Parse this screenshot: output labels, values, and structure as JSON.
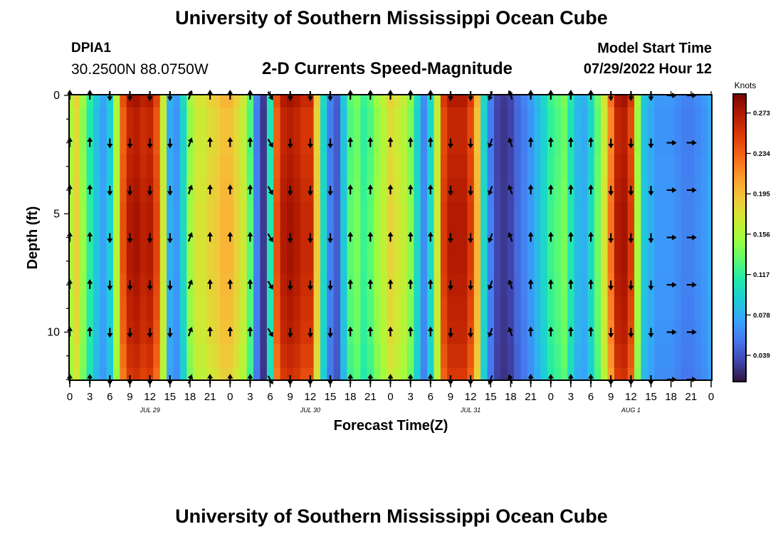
{
  "header": {
    "title": "University of Southern Mississippi Ocean Cube",
    "station": "DPIA1",
    "coords": "30.2500N  88.0750W",
    "plot_title": "2-D Currents Speed-Magnitude",
    "model_start_label": "Model Start Time",
    "model_start_time": "07/29/2022 Hour 12"
  },
  "footer": {
    "title": "University of Southern Mississippi Ocean Cube"
  },
  "colors": {
    "frame": "#000000",
    "arrow": "#000000",
    "colormap": [
      "#30123b",
      "#4145ab",
      "#4675ed",
      "#39a2fc",
      "#1bcfd4",
      "#24eca6",
      "#61fc6c",
      "#a4fc3b",
      "#d1e834",
      "#f3c63a",
      "#fe9b2d",
      "#f36315",
      "#d93806",
      "#b11901",
      "#7a0402"
    ]
  },
  "chart_data": {
    "type": "heatmap",
    "title": "2-D Currents Speed-Magnitude",
    "xlabel": "Forecast Time(Z)",
    "ylabel": "Depth (ft)",
    "x_tick_labels": [
      "0",
      "3",
      "6",
      "9",
      "12",
      "15",
      "18",
      "21",
      "0",
      "3",
      "6",
      "9",
      "12",
      "15",
      "18",
      "21",
      "0",
      "3",
      "6",
      "9",
      "12",
      "15",
      "18",
      "21",
      "0",
      "3",
      "6",
      "9",
      "12",
      "15",
      "18",
      "21",
      "0"
    ],
    "x_range_hours": [
      0,
      96
    ],
    "date_labels": [
      {
        "label": "JUL 29",
        "hour": 12
      },
      {
        "label": "JUL 30",
        "hour": 36
      },
      {
        "label": "JUL 31",
        "hour": 60
      },
      {
        "label": "AUG 1",
        "hour": 84
      }
    ],
    "y_tick_labels": [
      "0",
      "5",
      "10"
    ],
    "y_tick_values": [
      0,
      5,
      10
    ],
    "y_range_ft": [
      0,
      12
    ],
    "colorbar": {
      "label": "Knots",
      "tick_labels": [
        "0.273",
        "0.234",
        "0.195",
        "0.156",
        "0.117",
        "0.078",
        "0.039"
      ],
      "tick_values": [
        0.273,
        0.234,
        0.195,
        0.156,
        0.117,
        0.078,
        0.039
      ],
      "range": [
        0.015,
        0.29
      ]
    },
    "speed_time_hours": [
      0,
      1,
      2,
      3,
      4,
      5,
      6,
      7,
      8,
      9,
      10,
      11,
      12,
      13,
      14,
      15,
      16,
      17,
      18,
      19,
      20,
      21,
      22,
      23,
      24,
      25,
      26,
      27,
      28,
      29,
      30,
      31,
      32,
      33,
      34,
      35,
      36,
      37,
      38,
      39,
      40,
      41,
      42,
      43,
      44,
      45,
      46,
      47,
      48,
      49,
      50,
      51,
      52,
      53,
      54,
      55,
      56,
      57,
      58,
      59,
      60,
      61,
      62,
      63,
      64,
      65,
      66,
      67,
      68,
      69,
      70,
      71,
      72,
      73,
      74,
      75,
      76,
      77,
      78,
      79,
      80,
      81,
      82,
      83,
      84,
      85,
      86,
      87,
      88,
      89,
      90,
      91,
      92,
      93,
      94,
      95,
      96
    ],
    "speed_knots": [
      0.16,
      0.185,
      0.15,
      0.115,
      0.09,
      0.075,
      0.095,
      0.16,
      0.24,
      0.27,
      0.275,
      0.265,
      0.27,
      0.245,
      0.17,
      0.08,
      0.07,
      0.1,
      0.15,
      0.175,
      0.175,
      0.185,
      0.19,
      0.2,
      0.2,
      0.185,
      0.17,
      0.13,
      0.06,
      0.03,
      0.11,
      0.24,
      0.27,
      0.275,
      0.27,
      0.26,
      0.26,
      0.19,
      0.1,
      0.06,
      0.045,
      0.09,
      0.13,
      0.14,
      0.12,
      0.13,
      0.15,
      0.165,
      0.185,
      0.175,
      0.165,
      0.145,
      0.1,
      0.065,
      0.1,
      0.17,
      0.25,
      0.27,
      0.27,
      0.27,
      0.25,
      0.2,
      0.1,
      0.06,
      0.035,
      0.03,
      0.035,
      0.05,
      0.06,
      0.07,
      0.085,
      0.1,
      0.12,
      0.13,
      0.14,
      0.11,
      0.085,
      0.08,
      0.1,
      0.135,
      0.175,
      0.225,
      0.27,
      0.275,
      0.25,
      0.155,
      0.09,
      0.08,
      0.07,
      0.07,
      0.07,
      0.065,
      0.06,
      0.06,
      0.065,
      0.07,
      0.08
    ],
    "depth_profile_ft": [
      0,
      1,
      2,
      3,
      4,
      5,
      6,
      7,
      8,
      9,
      10,
      11,
      12
    ],
    "depth_factor": [
      1.0,
      0.97,
      0.97,
      0.98,
      0.99,
      1.0,
      1.0,
      1.0,
      0.99,
      0.98,
      0.97,
      0.95,
      0.93
    ],
    "arrow_depths_ft": [
      0,
      2,
      4,
      6,
      8,
      10,
      12
    ],
    "arrows": [
      {
        "hour": 0,
        "dir": 0
      },
      {
        "hour": 3,
        "dir": 0
      },
      {
        "hour": 6,
        "dir": 180
      },
      {
        "hour": 9,
        "dir": 180
      },
      {
        "hour": 12,
        "dir": 180
      },
      {
        "hour": 15,
        "dir": 180
      },
      {
        "hour": 18,
        "dir": 20
      },
      {
        "hour": 21,
        "dir": 0
      },
      {
        "hour": 24,
        "dir": 0
      },
      {
        "hour": 27,
        "dir": 0
      },
      {
        "hour": 30,
        "dir": 150
      },
      {
        "hour": 33,
        "dir": 180
      },
      {
        "hour": 36,
        "dir": 180
      },
      {
        "hour": 39,
        "dir": 180
      },
      {
        "hour": 42,
        "dir": 0
      },
      {
        "hour": 45,
        "dir": 0
      },
      {
        "hour": 48,
        "dir": 0
      },
      {
        "hour": 51,
        "dir": 0
      },
      {
        "hour": 54,
        "dir": 0
      },
      {
        "hour": 57,
        "dir": 180
      },
      {
        "hour": 60,
        "dir": 180
      },
      {
        "hour": 63,
        "dir": 200
      },
      {
        "hour": 66,
        "dir": 340
      },
      {
        "hour": 69,
        "dir": 0
      },
      {
        "hour": 72,
        "dir": 0
      },
      {
        "hour": 75,
        "dir": 0
      },
      {
        "hour": 78,
        "dir": 0
      },
      {
        "hour": 81,
        "dir": 180
      },
      {
        "hour": 84,
        "dir": 180
      },
      {
        "hour": 87,
        "dir": 180
      },
      {
        "hour": 90,
        "dir": 90
      },
      {
        "hour": 93,
        "dir": 90
      }
    ]
  }
}
